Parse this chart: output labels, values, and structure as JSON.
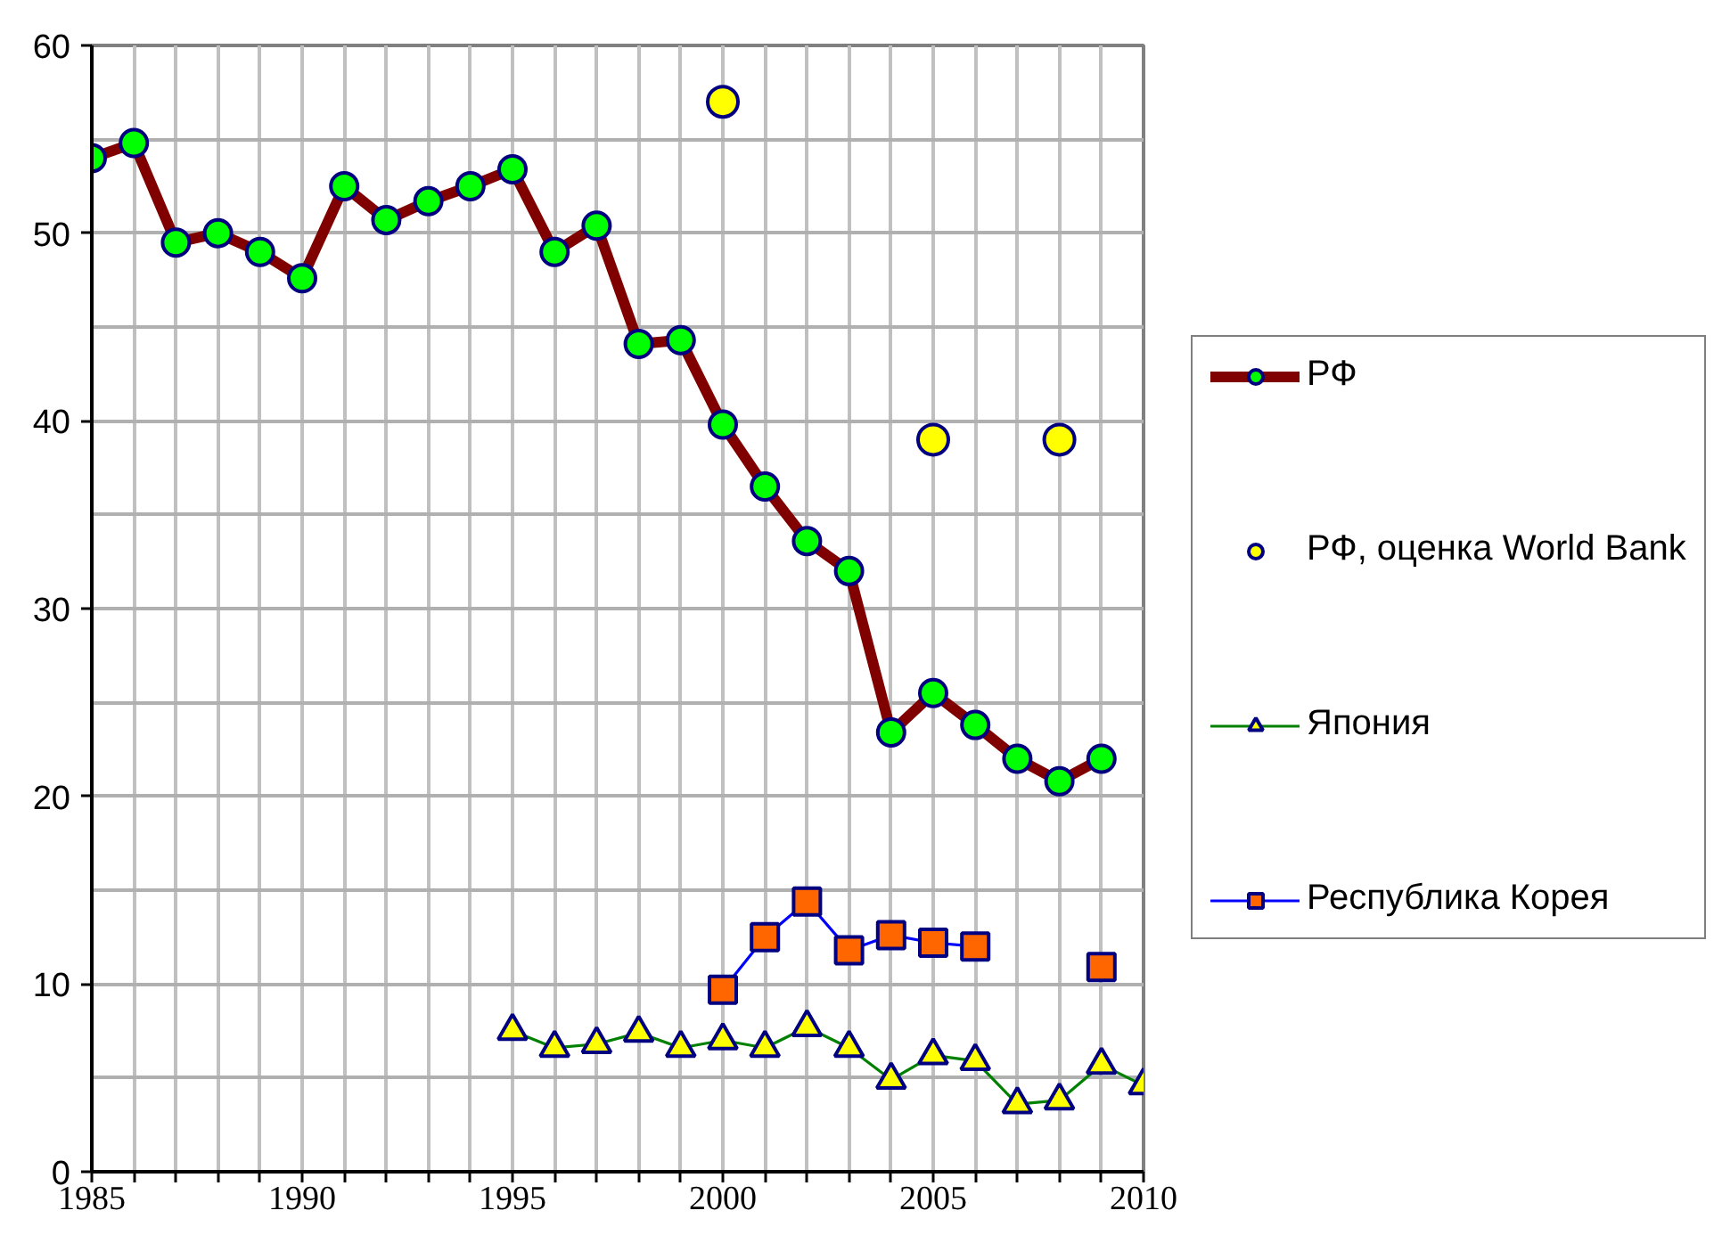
{
  "chart_data": {
    "type": "line",
    "xlim": [
      1985,
      2010
    ],
    "ylim": [
      0,
      60
    ],
    "xticks": [
      1985,
      {
        "value": 1986,
        "label": null
      },
      {
        "value": 1987,
        "label": null
      },
      {
        "value": 1988,
        "label": null
      },
      {
        "value": 1989,
        "label": null
      },
      1990,
      {
        "value": 1991,
        "label": null
      },
      {
        "value": 1992,
        "label": null
      },
      {
        "value": 1993,
        "label": null
      },
      {
        "value": 1994,
        "label": null
      },
      1995,
      {
        "value": 1996,
        "label": null
      },
      {
        "value": 1997,
        "label": null
      },
      {
        "value": 1998,
        "label": null
      },
      {
        "value": 1999,
        "label": null
      },
      2000,
      {
        "value": 2001,
        "label": null
      },
      {
        "value": 2002,
        "label": null
      },
      {
        "value": 2003,
        "label": null
      },
      {
        "value": 2004,
        "label": null
      },
      2005,
      {
        "value": 2006,
        "label": null
      },
      {
        "value": 2007,
        "label": null
      },
      {
        "value": 2008,
        "label": null
      },
      {
        "value": 2009,
        "label": null
      },
      2010
    ],
    "yticks": [
      0,
      10,
      20,
      30,
      40,
      50,
      60
    ],
    "grid": true,
    "legend": "right",
    "series": [
      {
        "name": "РФ",
        "marker": "circle",
        "color": "#800000",
        "x": [
          1985,
          1986,
          1987,
          1988,
          1989,
          1990,
          1991,
          1992,
          1993,
          1994,
          1995,
          1996,
          1997,
          1998,
          1999,
          2000,
          2001,
          2002,
          2003,
          2004,
          2005,
          2006,
          2007,
          2008,
          2009
        ],
        "values": [
          54.0,
          54.8,
          49.5,
          50.0,
          49.0,
          47.6,
          52.5,
          50.7,
          51.7,
          52.5,
          53.4,
          49.0,
          50.4,
          44.1,
          44.3,
          39.8,
          36.5,
          33.6,
          32.0,
          23.4,
          25.5,
          23.8,
          22.0,
          20.8,
          22.0
        ],
        "colors": [
          "#00ff00",
          "#00ff00",
          "#00ff00",
          "#00ff00",
          "#00ff00",
          "#00ff00",
          "#00ff00",
          "#00ff00",
          "#00ff00",
          "#00ff00",
          "#00ff00",
          "#00ff00",
          "#00ff00",
          "#00ff00",
          "#00ff00",
          "#00ff00",
          "#00ff00",
          "#00ff00",
          "#00ff00",
          "#00ff00",
          "#00ff00",
          "#00ff00",
          "#00ff00",
          "#00ff00",
          "#00ff00"
        ]
      },
      {
        "name": "РФ, оценка World Bank",
        "type": "scatter",
        "marker": "circle",
        "color": "#ffff00",
        "x": [
          2000,
          2005,
          2008
        ],
        "values": [
          57.0,
          39.0,
          39.0
        ]
      },
      {
        "name": "Япония",
        "marker": "triangle",
        "color": "#008000",
        "x": [
          1995,
          1996,
          1997,
          1998,
          1999,
          2000,
          2001,
          2002,
          2003,
          2004,
          2005,
          2006,
          2007,
          2008,
          2009,
          2010
        ],
        "values": [
          7.5,
          6.6,
          6.8,
          7.4,
          6.6,
          7.0,
          6.6,
          7.7,
          6.6,
          4.9,
          6.2,
          5.9,
          3.6,
          3.8,
          5.7,
          4.6
        ],
        "colors": [
          "#ffff00",
          "#ffff00",
          "#ffff00",
          "#ffff00",
          "#ffff00",
          "#ffff00",
          "#ffff00",
          "#ffff00",
          "#ffff00",
          "#ffff00",
          "#ffff00",
          "#ffff00",
          "#ffff00",
          "#ffff00",
          "#ffff00",
          "#ffff00"
        ]
      },
      {
        "name": "Республика Корея",
        "marker": "square",
        "color": "#0000ff",
        "x": [
          2000,
          2001,
          2002,
          2003,
          2004,
          2005,
          2006,
          2007,
          2008,
          2009
        ],
        "values": [
          9.7,
          12.5,
          14.4,
          11.8,
          12.6,
          12.2,
          12.0,
          null,
          null,
          10.9
        ],
        "colors": [
          "#ff6600",
          "#ff6600",
          "#ff6600",
          "#ff6600",
          "#ff6600",
          "#ff6600",
          "#ff6600",
          "#ff6600",
          "#ff6600",
          "#ff6600"
        ]
      }
    ]
  }
}
